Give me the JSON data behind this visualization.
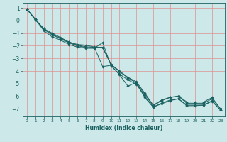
{
  "title": "",
  "xlabel": "Humidex (Indice chaleur)",
  "ylabel": "",
  "bg_color": "#cce8e8",
  "grid_color": "#e09090",
  "line_color": "#1a6060",
  "marker_color": "#1a6060",
  "xlim": [
    -0.5,
    23.5
  ],
  "ylim": [
    -7.6,
    1.4
  ],
  "xticks": [
    0,
    1,
    2,
    3,
    4,
    5,
    6,
    7,
    8,
    9,
    10,
    11,
    12,
    13,
    14,
    15,
    16,
    17,
    18,
    19,
    20,
    21,
    22,
    23
  ],
  "yticks": [
    1,
    0,
    -1,
    -2,
    -3,
    -4,
    -5,
    -6,
    -7
  ],
  "lines": [
    {
      "x": [
        0,
        1,
        2,
        3,
        4,
        5,
        6,
        7,
        8,
        9,
        10,
        11,
        12,
        13,
        14,
        15,
        16,
        17,
        18,
        19,
        20,
        21,
        22,
        23
      ],
      "y": [
        0.9,
        0.05,
        -0.65,
        -1.0,
        -1.35,
        -1.7,
        -1.9,
        -1.95,
        -2.1,
        -3.65,
        -3.55,
        -4.3,
        -5.2,
        -4.9,
        -6.1,
        -6.85,
        -6.6,
        -6.35,
        -6.2,
        -6.75,
        -6.75,
        -6.7,
        -6.35,
        -7.1
      ]
    },
    {
      "x": [
        0,
        1,
        2,
        3,
        4,
        5,
        6,
        7,
        8,
        9,
        10,
        11,
        12,
        13,
        14,
        15,
        16,
        17,
        18,
        19,
        20,
        21,
        22,
        23
      ],
      "y": [
        0.9,
        0.1,
        -0.8,
        -1.3,
        -1.55,
        -1.9,
        -2.1,
        -2.2,
        -2.2,
        -1.75,
        -3.6,
        -4.25,
        -4.7,
        -5.05,
        -6.0,
        -6.85,
        -6.55,
        -6.3,
        -6.2,
        -6.7,
        -6.7,
        -6.7,
        -6.4,
        -7.1
      ]
    },
    {
      "x": [
        0,
        1,
        2,
        3,
        4,
        5,
        6,
        7,
        8,
        9,
        10,
        11,
        12,
        13,
        14,
        15,
        16,
        17,
        18,
        19,
        20,
        21,
        22,
        23
      ],
      "y": [
        0.9,
        0.1,
        -0.7,
        -1.15,
        -1.45,
        -1.78,
        -2.0,
        -2.15,
        -2.15,
        -2.15,
        -3.5,
        -4.05,
        -4.55,
        -4.95,
        -5.85,
        -6.75,
        -6.35,
        -6.1,
        -6.0,
        -6.55,
        -6.55,
        -6.55,
        -6.2,
        -7.0
      ]
    },
    {
      "x": [
        0,
        1,
        2,
        3,
        4,
        5,
        6,
        7,
        8,
        9,
        10,
        11,
        12,
        13,
        14,
        15,
        16,
        17,
        18,
        19,
        20,
        21,
        22,
        23
      ],
      "y": [
        0.9,
        0.1,
        -0.65,
        -1.1,
        -1.4,
        -1.72,
        -1.95,
        -2.08,
        -2.12,
        -2.12,
        -3.48,
        -4.0,
        -4.5,
        -4.85,
        -5.75,
        -6.7,
        -6.3,
        -6.08,
        -5.98,
        -6.45,
        -6.45,
        -6.45,
        -6.1,
        -7.0
      ]
    }
  ]
}
